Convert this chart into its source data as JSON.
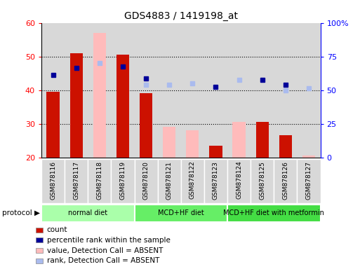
{
  "title": "GDS4883 / 1419198_at",
  "samples": [
    "GSM878116",
    "GSM878117",
    "GSM878118",
    "GSM878119",
    "GSM878120",
    "GSM878121",
    "GSM878122",
    "GSM878123",
    "GSM878124",
    "GSM878125",
    "GSM878126",
    "GSM878127"
  ],
  "count_values": [
    39.5,
    51.0,
    null,
    50.5,
    39.0,
    null,
    null,
    23.5,
    null,
    30.5,
    26.5,
    null
  ],
  "value_absent": [
    null,
    null,
    57.0,
    null,
    null,
    29.0,
    28.0,
    null,
    30.5,
    null,
    null,
    20.5
  ],
  "percentile_present": [
    44.5,
    46.5,
    null,
    47.0,
    43.5,
    null,
    null,
    41.0,
    null,
    43.0,
    41.5,
    null
  ],
  "percentile_absent": [
    null,
    null,
    48.0,
    null,
    41.5,
    41.5,
    42.0,
    null,
    43.0,
    null,
    40.0,
    40.5
  ],
  "bar_bottom": 20,
  "ylim": [
    20,
    60
  ],
  "ylim2": [
    0,
    100
  ],
  "yticks_left": [
    20,
    30,
    40,
    50,
    60
  ],
  "yticks_right": [
    0,
    25,
    50,
    75,
    100
  ],
  "ytick_labels_right": [
    "0",
    "25",
    "50",
    "75",
    "100%"
  ],
  "protocol_groups": [
    {
      "label": "normal diet",
      "start": 0,
      "end": 4,
      "color": "#aaffaa"
    },
    {
      "label": "MCD+HF diet",
      "start": 4,
      "end": 8,
      "color": "#66ee66"
    },
    {
      "label": "MCD+HF diet with metformin",
      "start": 8,
      "end": 12,
      "color": "#44dd44"
    }
  ],
  "color_count": "#cc1100",
  "color_absent_bar": "#ffbbbb",
  "color_percentile": "#000099",
  "color_percentile_absent": "#aabbee",
  "bar_width": 0.55,
  "gridline_ticks": [
    30,
    40,
    50
  ],
  "col_bg": "#d8d8d8"
}
